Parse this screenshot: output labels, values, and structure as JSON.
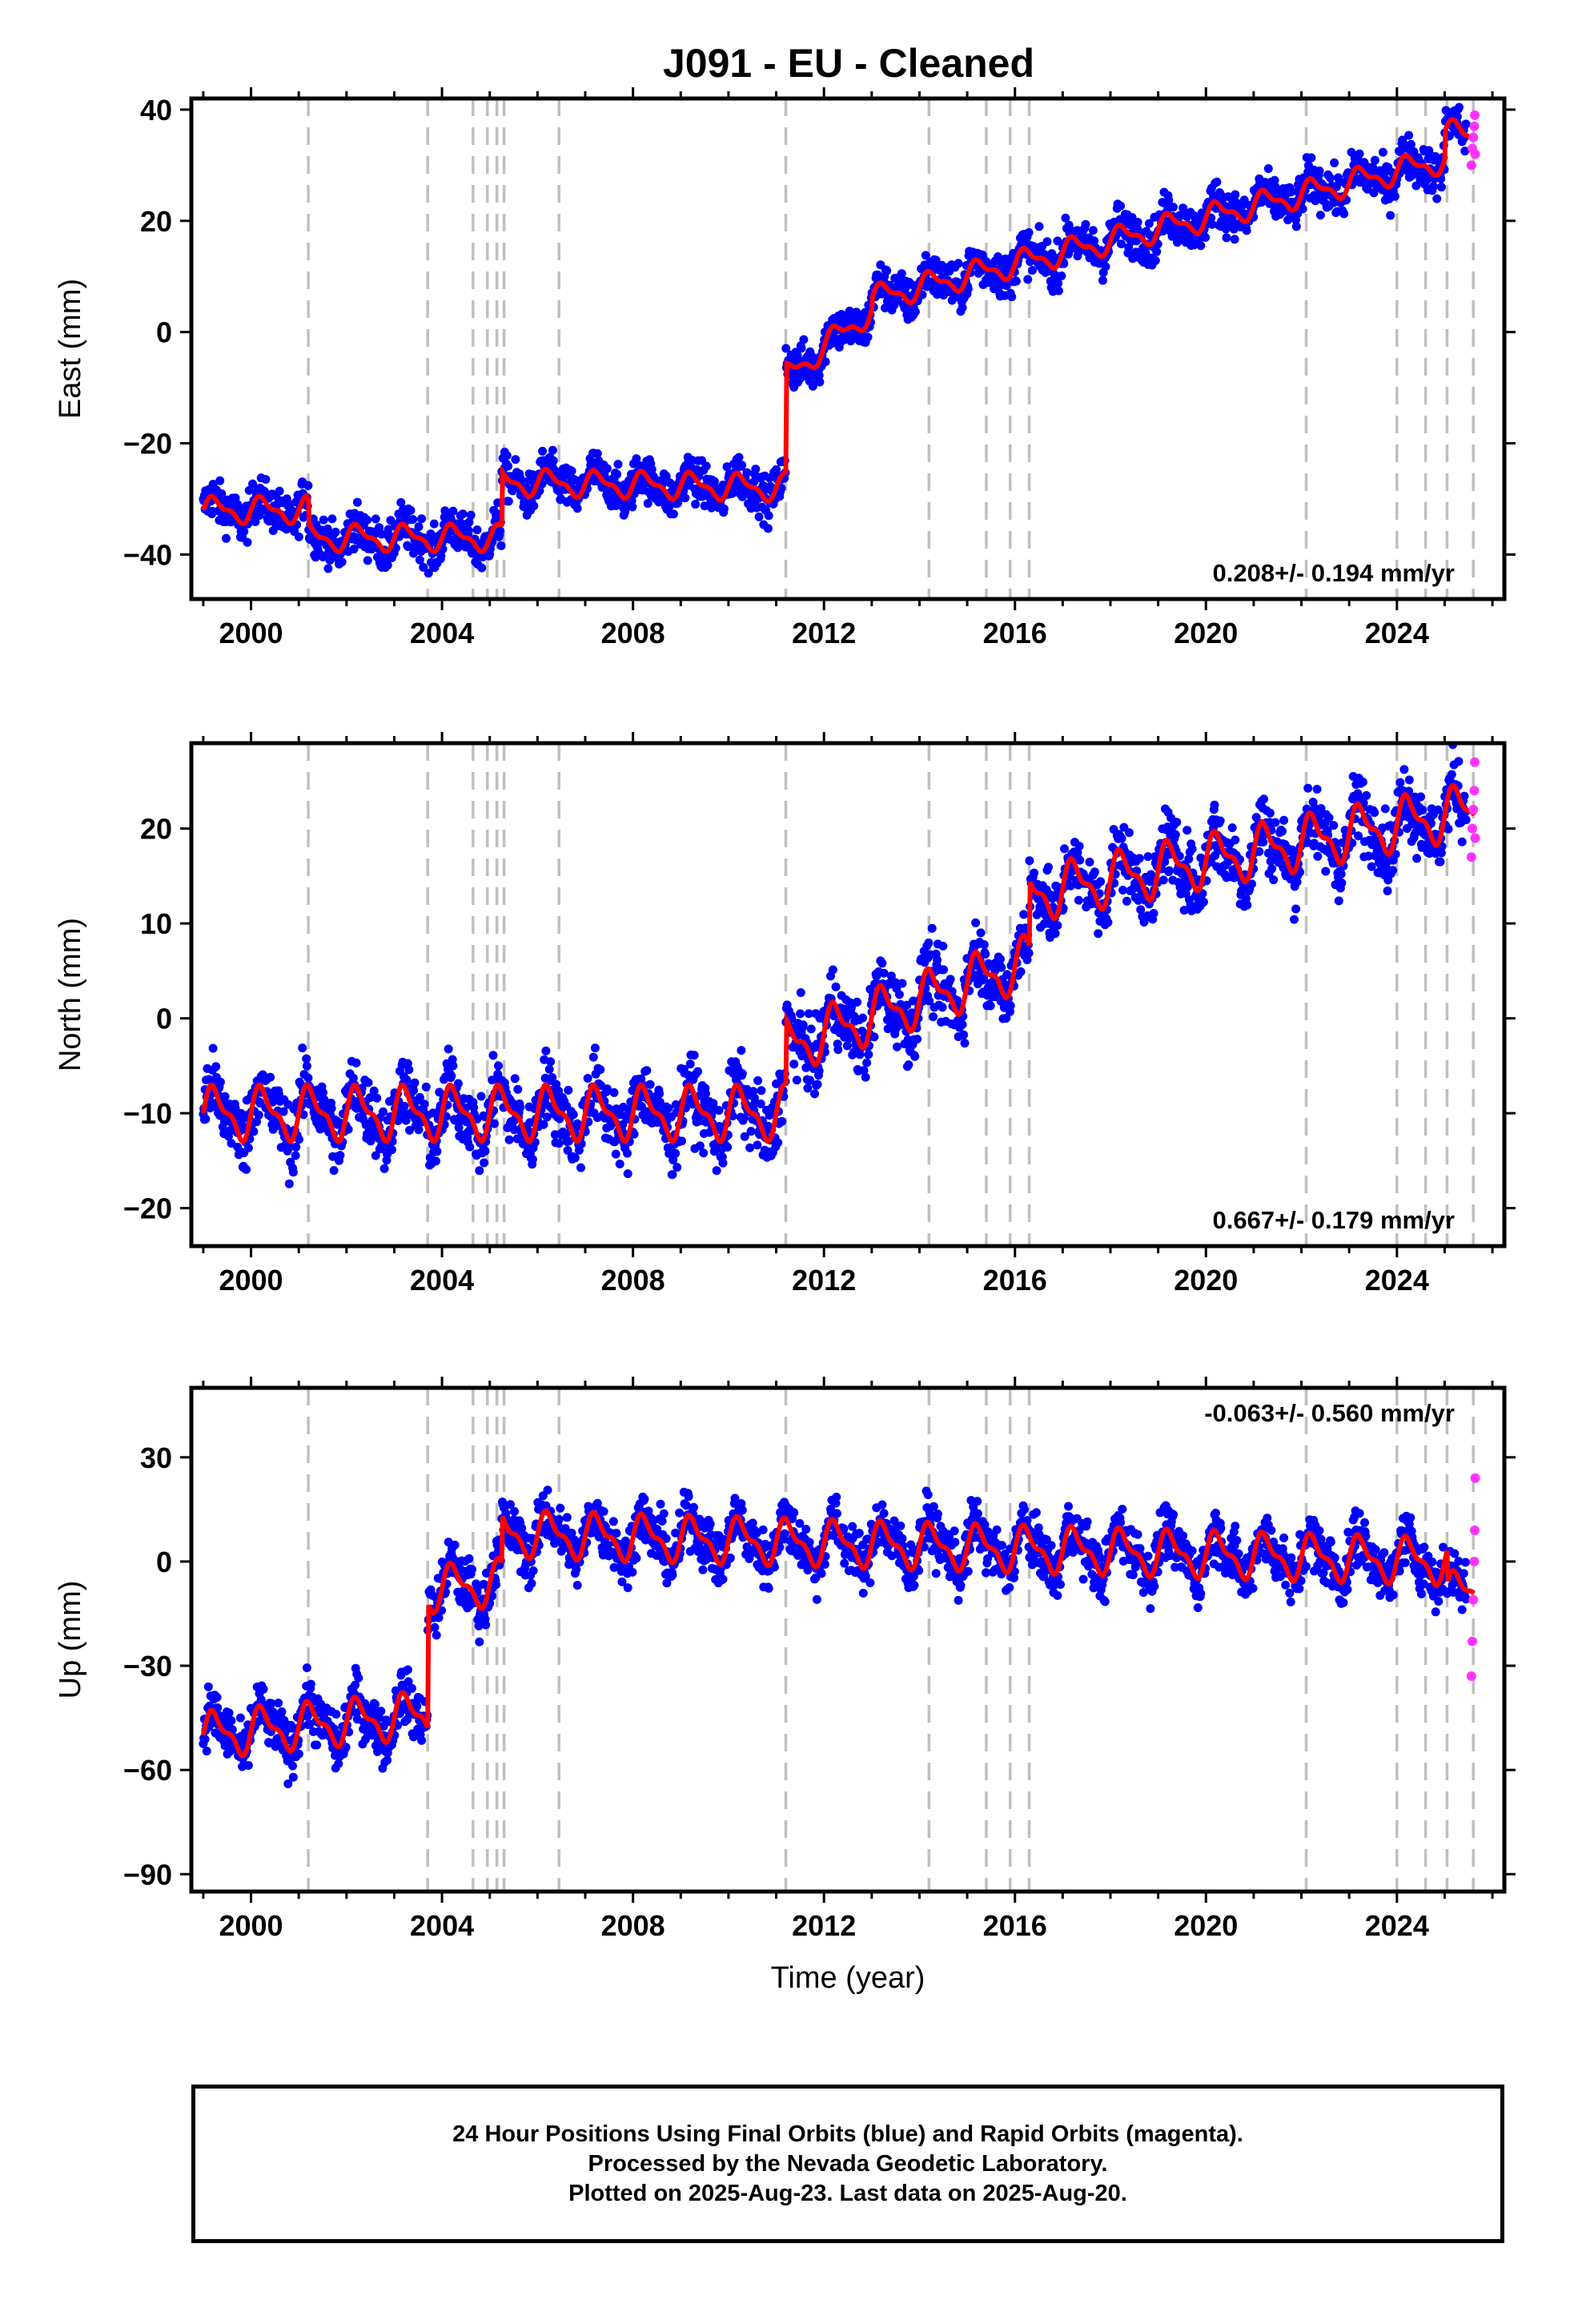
{
  "title": "J091  - EU - Cleaned",
  "footer": {
    "line1": "24 Hour Positions Using Final Orbits (blue) and Rapid Orbits (magenta).",
    "line2": "Processed by the Nevada Geodetic Laboratory.",
    "line3": "Plotted on 2025-Aug-23. Last data on 2025-Aug-20."
  },
  "colors": {
    "final_orbits": "#0000ff",
    "rapid_orbits": "#ff33ff",
    "model": "#ff0000",
    "event_lines": "#c0c0c0"
  },
  "chart_data": [
    {
      "type": "scatter",
      "component": "East",
      "ylabel": "East (mm)",
      "xlabel": "",
      "xlim": [
        1998.75,
        2026.25
      ],
      "ylim": [
        -48,
        42
      ],
      "xticks": [
        2000,
        2004,
        2008,
        2012,
        2016,
        2020,
        2024
      ],
      "yticks": [
        -40,
        -20,
        0,
        20,
        40
      ],
      "rate_label": "0.208+/- 0.194 mm/yr",
      "rate_position": "bottom-right",
      "grid": false,
      "events": [
        2001.2,
        2003.7,
        2004.65,
        2004.95,
        2005.15,
        2005.3,
        2006.45,
        2011.2,
        2014.2,
        2015.4,
        2015.9,
        2016.3,
        2022.1,
        2024.0,
        2024.6,
        2025.05,
        2025.6
      ],
      "model": {
        "segments": [
          {
            "x0": 1999.0,
            "x1": 2001.2,
            "y0": -32,
            "y1": -32
          },
          {
            "x0": 2001.2,
            "x1": 2005.25,
            "y0": -37,
            "y1": -37
          },
          {
            "x0": 2005.25,
            "x1": 2011.2,
            "y0": -27,
            "y1": -28
          },
          {
            "x0": 2011.2,
            "x1": 2013.0,
            "y0": -8,
            "y1": 4
          },
          {
            "x0": 2013.0,
            "x1": 2025.0,
            "y0": 6,
            "y1": 31
          },
          {
            "x0": 2025.0,
            "x1": 2025.62,
            "y0": 36,
            "y1": 35
          }
        ],
        "seasonal_amplitude": 2.5
      },
      "final_orbits": {
        "start": 1999.0,
        "end": 2025.45,
        "scatter": 2.8
      },
      "rapid_orbits": {
        "x": [
          2025.56,
          2025.58,
          2025.6,
          2025.62,
          2025.63,
          2025.64
        ],
        "y": [
          30,
          33,
          35,
          37,
          39,
          32
        ]
      }
    },
    {
      "type": "scatter",
      "component": "North",
      "ylabel": "North (mm)",
      "xlabel": "",
      "xlim": [
        1998.75,
        2026.25
      ],
      "ylim": [
        -24,
        29
      ],
      "xticks": [
        2000,
        2004,
        2008,
        2012,
        2016,
        2020,
        2024
      ],
      "yticks": [
        -20,
        -10,
        0,
        10,
        20
      ],
      "rate_label": "0.667+/- 0.179 mm/yr",
      "rate_position": "bottom-right",
      "grid": false,
      "events": [
        2001.2,
        2003.7,
        2004.65,
        2004.95,
        2005.15,
        2005.3,
        2006.45,
        2011.2,
        2014.2,
        2015.4,
        2015.9,
        2016.3,
        2022.1,
        2024.0,
        2024.6,
        2025.05,
        2025.6
      ],
      "model": {
        "segments": [
          {
            "x0": 1999.0,
            "x1": 2011.2,
            "y0": -10,
            "y1": -10
          },
          {
            "x0": 2011.2,
            "x1": 2016.3,
            "y0": -3,
            "y1": 6
          },
          {
            "x0": 2016.3,
            "x1": 2025.62,
            "y0": 13,
            "y1": 22
          }
        ],
        "seasonal_amplitude": 3.0
      },
      "final_orbits": {
        "start": 1999.0,
        "end": 2025.45,
        "scatter": 2.6
      },
      "rapid_orbits": {
        "x": [
          2025.56,
          2025.58,
          2025.6,
          2025.62,
          2025.63,
          2025.64
        ],
        "y": [
          17,
          20,
          22,
          24,
          27,
          19
        ]
      }
    },
    {
      "type": "scatter",
      "component": "Up",
      "ylabel": "Up (mm)",
      "xlabel": "Time (year)",
      "xlim": [
        1998.75,
        2026.25
      ],
      "ylim": [
        -95,
        50
      ],
      "xticks": [
        2000,
        2004,
        2008,
        2012,
        2016,
        2020,
        2024
      ],
      "yticks": [
        -90,
        -60,
        -30,
        0,
        30
      ],
      "rate_label": "-0.063+/- 0.560 mm/yr",
      "rate_position": "top-right",
      "grid": false,
      "events": [
        2001.2,
        2003.7,
        2004.65,
        2004.95,
        2005.15,
        2005.3,
        2006.45,
        2011.2,
        2014.2,
        2015.4,
        2015.9,
        2016.3,
        2022.1,
        2024.0,
        2024.6,
        2025.05,
        2025.6
      ],
      "model": {
        "segments": [
          {
            "x0": 1999.0,
            "x1": 2003.7,
            "y0": -50,
            "y1": -44
          },
          {
            "x0": 2003.7,
            "x1": 2005.25,
            "y0": -8,
            "y1": -6
          },
          {
            "x0": 2005.25,
            "x1": 2025.05,
            "y0": 8,
            "y1": 0
          },
          {
            "x0": 2025.05,
            "x1": 2025.62,
            "y0": -10,
            "y1": -8
          }
        ],
        "seasonal_amplitude": 7.0
      },
      "final_orbits": {
        "start": 1999.0,
        "end": 2025.45,
        "scatter": 5.5
      },
      "rapid_orbits": {
        "x": [
          2025.56,
          2025.58,
          2025.6,
          2025.62,
          2025.63,
          2025.64
        ],
        "y": [
          -33,
          -23,
          -11,
          0,
          9,
          24
        ]
      }
    }
  ]
}
